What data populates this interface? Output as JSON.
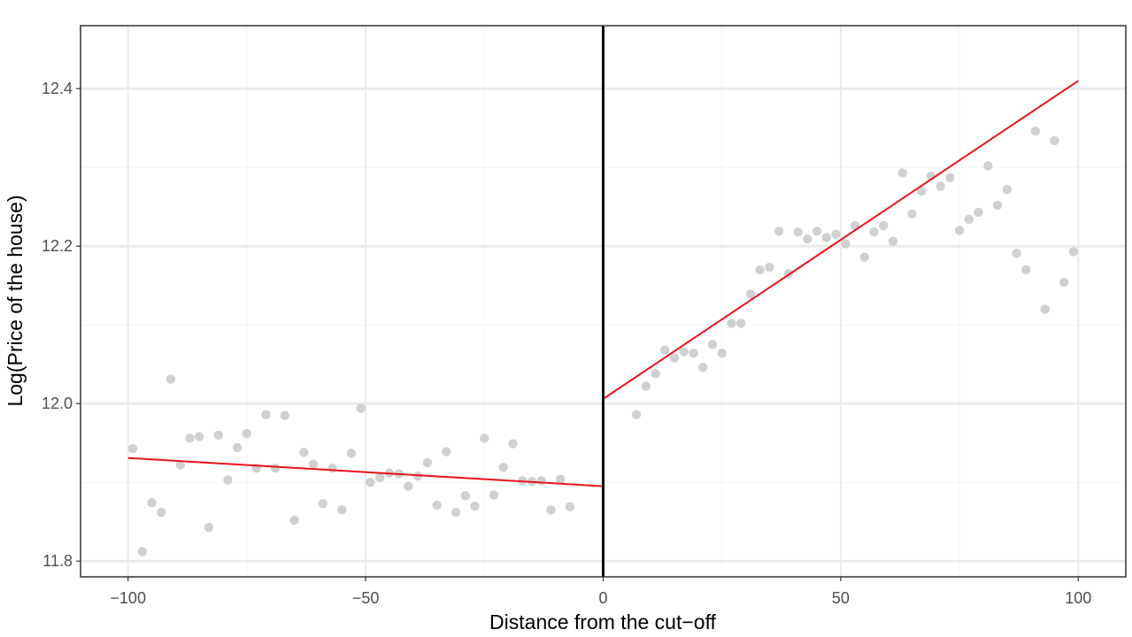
{
  "chart_data": {
    "type": "scatter",
    "title": "",
    "xlabel": "Distance from the cut−off",
    "ylabel": "Log(Price of the house)",
    "xlim": [
      -110,
      110
    ],
    "ylim": [
      11.78,
      12.48
    ],
    "x_ticks": [
      -100,
      -50,
      0,
      50,
      100
    ],
    "x_tick_labels": [
      "−100",
      "−50",
      "0",
      "50",
      "100"
    ],
    "y_ticks": [
      11.8,
      12.0,
      12.2,
      12.4
    ],
    "y_tick_labels": [
      "11.8",
      "12.0",
      "12.2",
      "12.4"
    ],
    "grid": true,
    "legend": "none",
    "cutoff_x": 0,
    "colors": {
      "points": "#d0d0d0",
      "fit": "#e8141a",
      "cutoff": "#000000",
      "grid_major": "#ebebeb",
      "grid_minor": "#f4f4f4",
      "panel_border": "#333333"
    },
    "points": [
      {
        "x": -99,
        "y": 11.943
      },
      {
        "x": -97,
        "y": 11.812
      },
      {
        "x": -95,
        "y": 11.874
      },
      {
        "x": -93,
        "y": 11.862
      },
      {
        "x": -91,
        "y": 12.031
      },
      {
        "x": -89,
        "y": 11.922
      },
      {
        "x": -87,
        "y": 11.956
      },
      {
        "x": -85,
        "y": 11.958
      },
      {
        "x": -83,
        "y": 11.843
      },
      {
        "x": -81,
        "y": 11.96
      },
      {
        "x": -79,
        "y": 11.903
      },
      {
        "x": -77,
        "y": 11.944
      },
      {
        "x": -75,
        "y": 11.962
      },
      {
        "x": -73,
        "y": 11.918
      },
      {
        "x": -71,
        "y": 11.986
      },
      {
        "x": -69,
        "y": 11.918
      },
      {
        "x": -67,
        "y": 11.985
      },
      {
        "x": -65,
        "y": 11.852
      },
      {
        "x": -63,
        "y": 11.938
      },
      {
        "x": -61,
        "y": 11.923
      },
      {
        "x": -59,
        "y": 11.873
      },
      {
        "x": -57,
        "y": 11.918
      },
      {
        "x": -55,
        "y": 11.865
      },
      {
        "x": -53,
        "y": 11.937
      },
      {
        "x": -51,
        "y": 11.994
      },
      {
        "x": -49,
        "y": 11.9
      },
      {
        "x": -47,
        "y": 11.906
      },
      {
        "x": -45,
        "y": 11.912
      },
      {
        "x": -43,
        "y": 11.911
      },
      {
        "x": -41,
        "y": 11.895
      },
      {
        "x": -39,
        "y": 11.908
      },
      {
        "x": -37,
        "y": 11.925
      },
      {
        "x": -35,
        "y": 11.871
      },
      {
        "x": -33,
        "y": 11.939
      },
      {
        "x": -31,
        "y": 11.862
      },
      {
        "x": -29,
        "y": 11.883
      },
      {
        "x": -27,
        "y": 11.87
      },
      {
        "x": -25,
        "y": 11.956
      },
      {
        "x": -23,
        "y": 11.884
      },
      {
        "x": -21,
        "y": 11.919
      },
      {
        "x": -19,
        "y": 11.949
      },
      {
        "x": -17,
        "y": 11.902
      },
      {
        "x": -15,
        "y": 11.901
      },
      {
        "x": -13,
        "y": 11.902
      },
      {
        "x": -11,
        "y": 11.865
      },
      {
        "x": -9,
        "y": 11.904
      },
      {
        "x": -7,
        "y": 11.869
      },
      {
        "x": 7,
        "y": 11.986
      },
      {
        "x": 9,
        "y": 12.022
      },
      {
        "x": 11,
        "y": 12.038
      },
      {
        "x": 13,
        "y": 12.068
      },
      {
        "x": 15,
        "y": 12.058
      },
      {
        "x": 17,
        "y": 12.066
      },
      {
        "x": 19,
        "y": 12.064
      },
      {
        "x": 21,
        "y": 12.046
      },
      {
        "x": 23,
        "y": 12.075
      },
      {
        "x": 25,
        "y": 12.064
      },
      {
        "x": 27,
        "y": 12.102
      },
      {
        "x": 29,
        "y": 12.102
      },
      {
        "x": 31,
        "y": 12.139
      },
      {
        "x": 33,
        "y": 12.17
      },
      {
        "x": 35,
        "y": 12.173
      },
      {
        "x": 37,
        "y": 12.219
      },
      {
        "x": 39,
        "y": 12.165
      },
      {
        "x": 41,
        "y": 12.218
      },
      {
        "x": 43,
        "y": 12.209
      },
      {
        "x": 45,
        "y": 12.219
      },
      {
        "x": 47,
        "y": 12.211
      },
      {
        "x": 49,
        "y": 12.215
      },
      {
        "x": 51,
        "y": 12.203
      },
      {
        "x": 53,
        "y": 12.226
      },
      {
        "x": 55,
        "y": 12.186
      },
      {
        "x": 57,
        "y": 12.218
      },
      {
        "x": 59,
        "y": 12.226
      },
      {
        "x": 61,
        "y": 12.206
      },
      {
        "x": 63,
        "y": 12.293
      },
      {
        "x": 65,
        "y": 12.241
      },
      {
        "x": 67,
        "y": 12.27
      },
      {
        "x": 69,
        "y": 12.289
      },
      {
        "x": 71,
        "y": 12.276
      },
      {
        "x": 73,
        "y": 12.287
      },
      {
        "x": 75,
        "y": 12.22
      },
      {
        "x": 77,
        "y": 12.234
      },
      {
        "x": 79,
        "y": 12.243
      },
      {
        "x": 81,
        "y": 12.302
      },
      {
        "x": 83,
        "y": 12.252
      },
      {
        "x": 85,
        "y": 12.272
      },
      {
        "x": 87,
        "y": 12.191
      },
      {
        "x": 89,
        "y": 12.17
      },
      {
        "x": 91,
        "y": 12.346
      },
      {
        "x": 93,
        "y": 12.12
      },
      {
        "x": 95,
        "y": 12.334
      },
      {
        "x": 97,
        "y": 12.154
      },
      {
        "x": 99,
        "y": 12.193
      }
    ],
    "fit_lines": [
      {
        "segment": "left",
        "x": [
          -100,
          0
        ],
        "y": [
          11.931,
          11.895
        ]
      },
      {
        "segment": "right",
        "x": [
          0,
          100
        ],
        "y": [
          12.006,
          12.41
        ]
      }
    ]
  }
}
